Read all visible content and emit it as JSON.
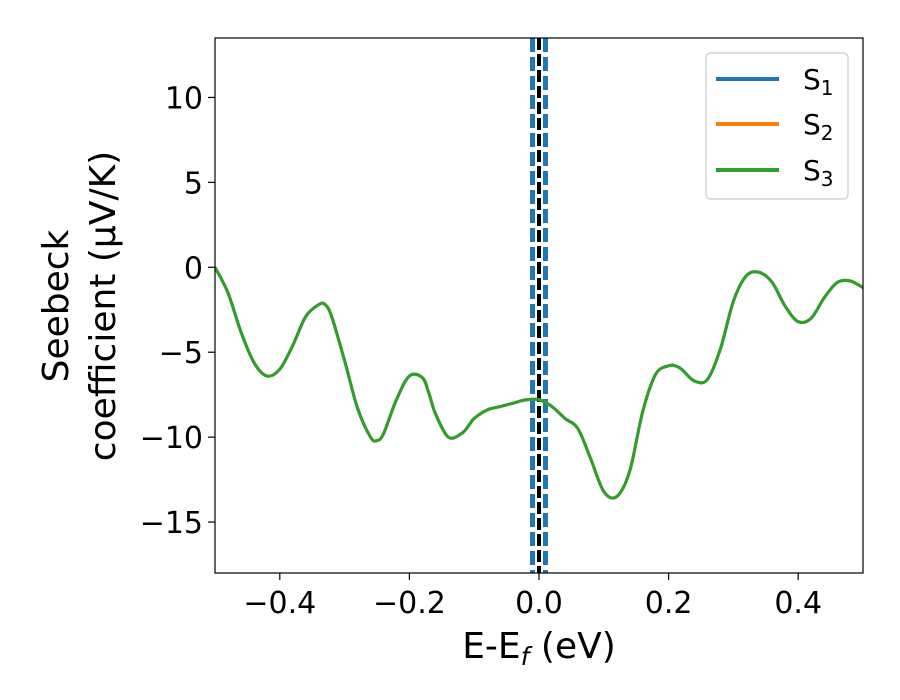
{
  "chart_data": {
    "type": "line",
    "title": "",
    "xlabel": {
      "main": "E-E",
      "sub": "f",
      "suffix": " (eV)"
    },
    "ylabel": {
      "line1": "Seebeck",
      "line2": "coefficient  (μV/K)"
    },
    "xlim": [
      -0.5,
      0.5
    ],
    "ylim": [
      -18,
      13.5
    ],
    "xticks": [
      -0.4,
      -0.2,
      0.0,
      0.2,
      0.4
    ],
    "xtick_labels": [
      "−0.4",
      "−0.2",
      "0.0",
      "0.2",
      "0.4"
    ],
    "yticks": [
      -15,
      -10,
      -5,
      0,
      5,
      10
    ],
    "ytick_labels": [
      "−15",
      "−10",
      "−5",
      "0",
      "5",
      "10"
    ],
    "grid": false,
    "legend_position": "top-right",
    "reference_line": {
      "x": 0.0,
      "color": "#000000",
      "style": "dashed"
    },
    "reference_band": {
      "x": [
        -0.01,
        0.01
      ],
      "color": "#1f77b4",
      "style": "dashed"
    },
    "series": [
      {
        "name": "S",
        "sub": "1",
        "color": "#1f77b4"
      },
      {
        "name": "S",
        "sub": "2",
        "color": "#ff7f0e"
      },
      {
        "name": "S",
        "sub": "3",
        "color": "#2ca02c"
      }
    ],
    "x": [
      -0.5,
      -0.48,
      -0.46,
      -0.44,
      -0.42,
      -0.4,
      -0.38,
      -0.36,
      -0.34,
      -0.33,
      -0.32,
      -0.3,
      -0.28,
      -0.26,
      -0.25,
      -0.24,
      -0.22,
      -0.2,
      -0.18,
      -0.17,
      -0.16,
      -0.14,
      -0.12,
      -0.11,
      -0.1,
      -0.08,
      -0.06,
      -0.04,
      -0.02,
      0.0,
      0.02,
      0.04,
      0.06,
      0.08,
      0.1,
      0.12,
      0.14,
      0.16,
      0.18,
      0.2,
      0.21,
      0.22,
      0.24,
      0.26,
      0.28,
      0.3,
      0.32,
      0.34,
      0.36,
      0.38,
      0.4,
      0.42,
      0.44,
      0.46,
      0.48,
      0.5
    ],
    "values": [
      0.0,
      -1.5,
      -3.8,
      -5.6,
      -6.4,
      -6.0,
      -4.6,
      -2.9,
      -2.2,
      -2.2,
      -2.9,
      -5.5,
      -8.3,
      -10.0,
      -10.2,
      -9.8,
      -7.8,
      -6.4,
      -6.5,
      -7.4,
      -8.6,
      -10.0,
      -9.8,
      -9.4,
      -8.9,
      -8.4,
      -8.2,
      -8.0,
      -7.8,
      -7.8,
      -8.2,
      -8.9,
      -9.5,
      -11.3,
      -13.2,
      -13.5,
      -12.0,
      -8.5,
      -6.3,
      -5.8,
      -5.8,
      -6.0,
      -6.7,
      -6.6,
      -4.8,
      -2.0,
      -0.5,
      -0.3,
      -0.9,
      -2.3,
      -3.2,
      -3.0,
      -1.8,
      -0.9,
      -0.8,
      -1.2
    ]
  }
}
